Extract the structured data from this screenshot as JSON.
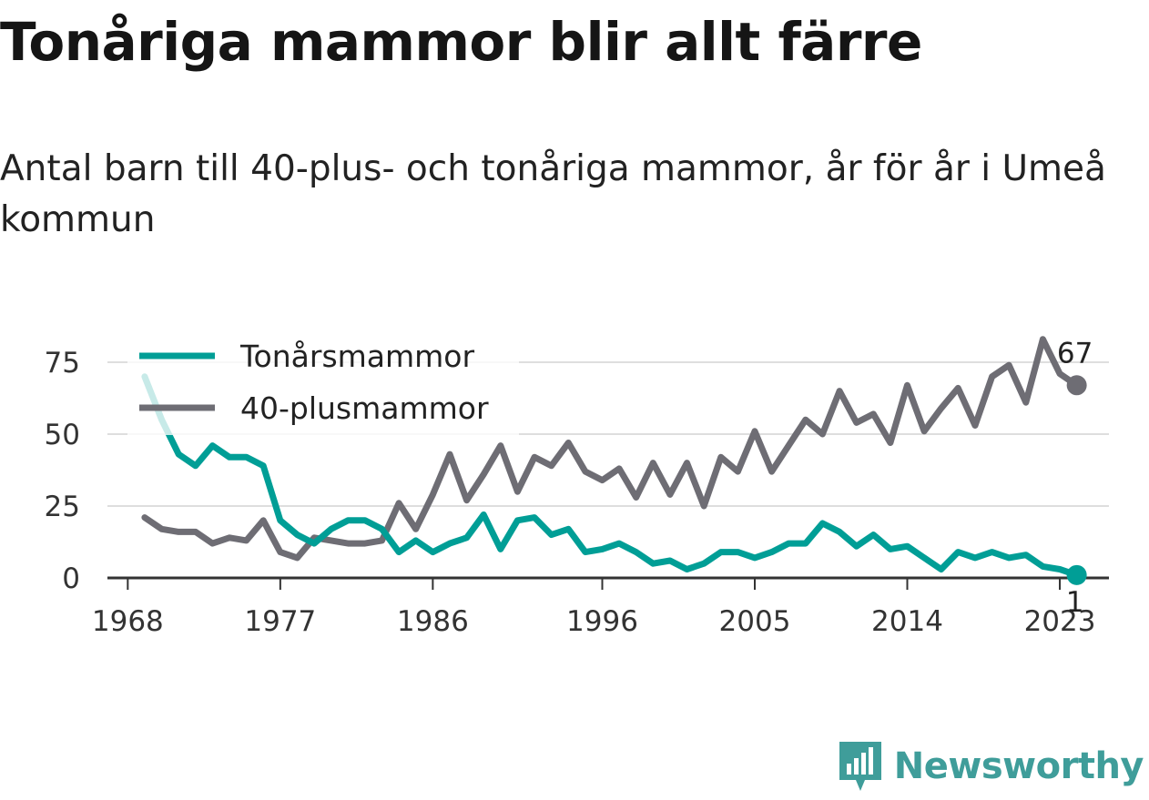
{
  "title": "Tonåriga mammor blir allt färre",
  "subtitle": "Antal barn till 40-plus- och tonåriga mammor, år för år i Umeå kommun",
  "brand": {
    "name": "Newsworthy",
    "icon": "newsworthy-logo-icon",
    "color": "#3f9d9a"
  },
  "chart_data": {
    "type": "line",
    "x_tick_labels": [
      "1968",
      "1977",
      "1986",
      "1996",
      "2005",
      "2014",
      "2023"
    ],
    "y_tick_labels": [
      "0",
      "25",
      "50",
      "75"
    ],
    "ylim": [
      0,
      85
    ],
    "xlim": [
      1968,
      2024
    ],
    "grid": true,
    "legend_placement": "top-left",
    "series": [
      {
        "name": "Tonårsmammor",
        "color": "#009e96",
        "end_label": "1",
        "x": [
          1969,
          1970,
          1971,
          1972,
          1973,
          1974,
          1975,
          1976,
          1977,
          1978,
          1979,
          1980,
          1981,
          1982,
          1983,
          1984,
          1985,
          1986,
          1987,
          1988,
          1989,
          1990,
          1991,
          1992,
          1993,
          1994,
          1995,
          1996,
          1997,
          1998,
          1999,
          2000,
          2001,
          2002,
          2003,
          2004,
          2005,
          2006,
          2007,
          2008,
          2009,
          2010,
          2011,
          2012,
          2013,
          2014,
          2015,
          2016,
          2017,
          2018,
          2019,
          2020,
          2021,
          2022,
          2023,
          2024
        ],
        "values": [
          70,
          55,
          43,
          39,
          46,
          42,
          42,
          39,
          20,
          15,
          12,
          17,
          20,
          20,
          17,
          9,
          13,
          9,
          12,
          14,
          22,
          10,
          20,
          21,
          15,
          17,
          9,
          10,
          12,
          9,
          5,
          6,
          3,
          5,
          9,
          9,
          7,
          9,
          12,
          12,
          19,
          16,
          11,
          15,
          10,
          11,
          7,
          3,
          9,
          7,
          9,
          7,
          8,
          4,
          3,
          1
        ]
      },
      {
        "name": "40-plusmammor",
        "color": "#6e6d74",
        "end_label": "67",
        "x": [
          1969,
          1970,
          1971,
          1972,
          1973,
          1974,
          1975,
          1976,
          1977,
          1978,
          1979,
          1980,
          1981,
          1982,
          1983,
          1984,
          1985,
          1986,
          1987,
          1988,
          1989,
          1990,
          1991,
          1992,
          1993,
          1994,
          1995,
          1996,
          1997,
          1998,
          1999,
          2000,
          2001,
          2002,
          2003,
          2004,
          2005,
          2006,
          2007,
          2008,
          2009,
          2010,
          2011,
          2012,
          2013,
          2014,
          2015,
          2016,
          2017,
          2018,
          2019,
          2020,
          2021,
          2022,
          2023,
          2024
        ],
        "values": [
          21,
          17,
          16,
          16,
          12,
          14,
          13,
          20,
          9,
          7,
          14,
          13,
          12,
          12,
          13,
          26,
          17,
          29,
          43,
          27,
          36,
          46,
          30,
          42,
          39,
          47,
          37,
          34,
          38,
          28,
          40,
          29,
          40,
          25,
          42,
          37,
          51,
          37,
          46,
          55,
          50,
          65,
          54,
          57,
          47,
          67,
          51,
          59,
          66,
          53,
          70,
          74,
          61,
          83,
          71,
          67
        ]
      }
    ]
  }
}
